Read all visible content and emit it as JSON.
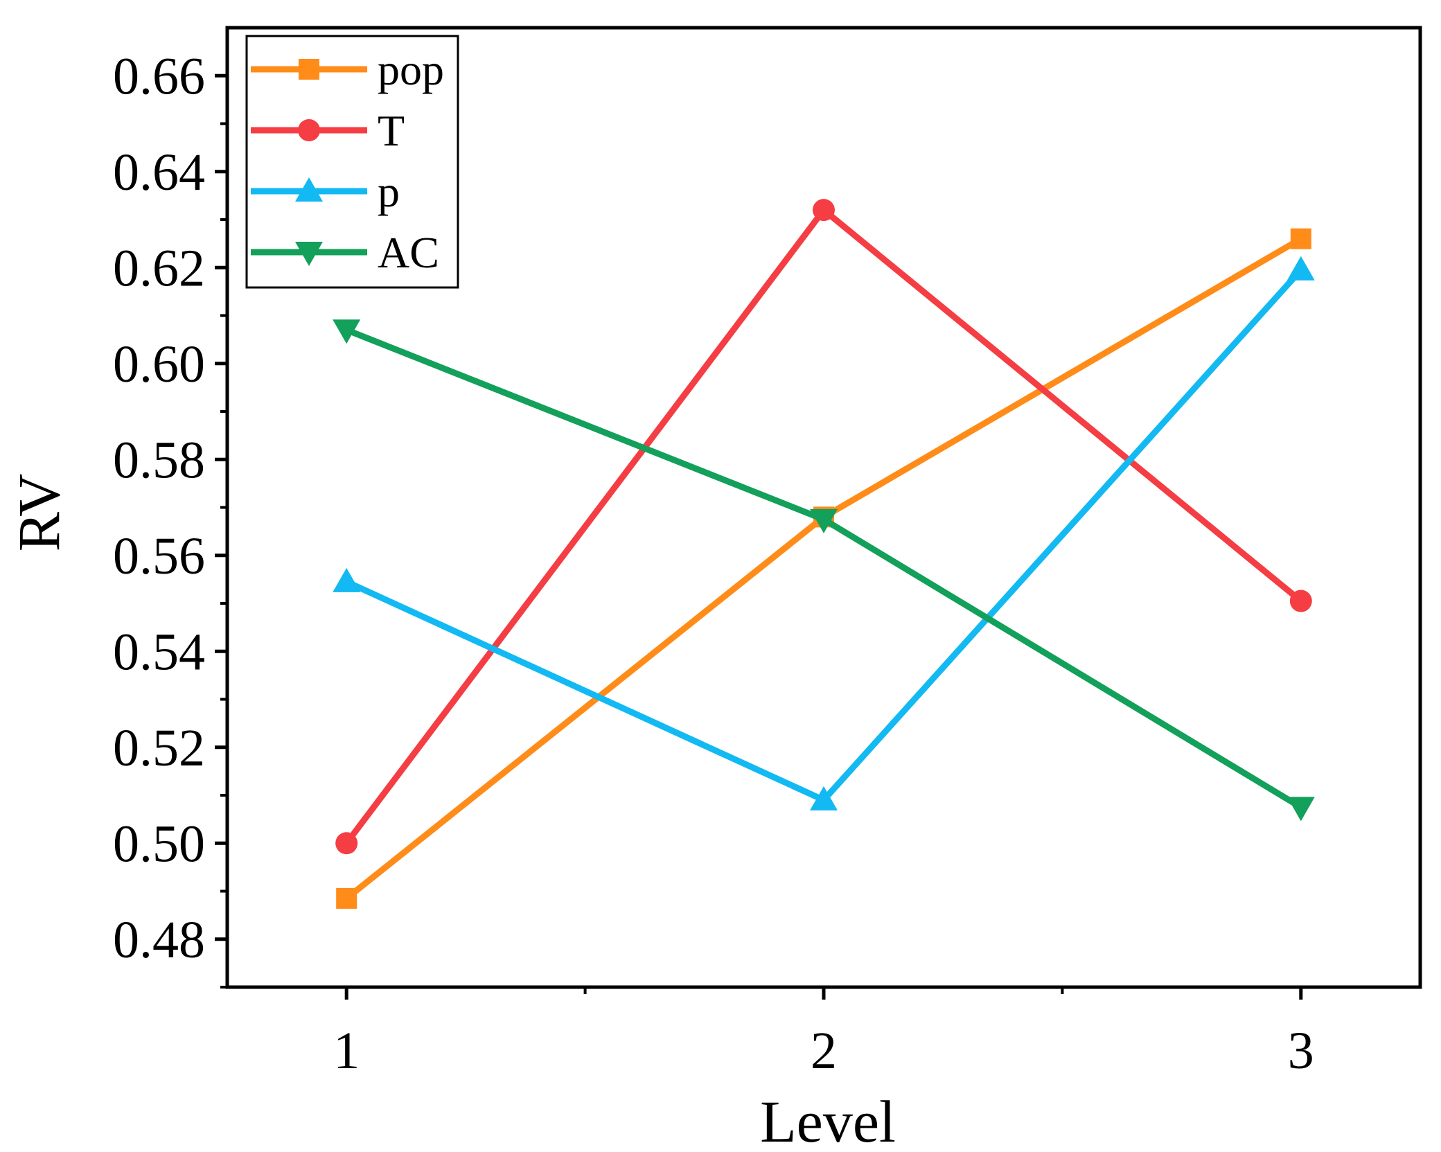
{
  "chart_data": {
    "type": "line",
    "title": "",
    "xlabel": "Level",
    "ylabel": "RV",
    "x": [
      1,
      2,
      3
    ],
    "xlim": [
      0.75,
      3.25
    ],
    "ylim": [
      0.47,
      0.67
    ],
    "x_ticks": [
      "1",
      "2",
      "3"
    ],
    "y_ticks": [
      "0.48",
      "0.50",
      "0.52",
      "0.54",
      "0.56",
      "0.58",
      "0.60",
      "0.62",
      "0.64",
      "0.66"
    ],
    "y_tick_values": [
      0.48,
      0.5,
      0.52,
      0.54,
      0.56,
      0.58,
      0.6,
      0.62,
      0.64,
      0.66
    ],
    "grid": false,
    "legend_position": "top-left",
    "series": [
      {
        "name": "pop",
        "values": [
          0.4885,
          0.568,
          0.626
        ],
        "color": "#FF8C19",
        "marker": "square"
      },
      {
        "name": "T",
        "values": [
          0.5,
          0.632,
          0.5505
        ],
        "color": "#F53D44",
        "marker": "circle"
      },
      {
        "name": "p",
        "values": [
          0.5545,
          0.509,
          0.6195
        ],
        "color": "#12B9F2",
        "marker": "triangle-up"
      },
      {
        "name": "AC",
        "values": [
          0.607,
          0.5675,
          0.5075
        ],
        "color": "#12A05A",
        "marker": "triangle-down"
      }
    ]
  }
}
